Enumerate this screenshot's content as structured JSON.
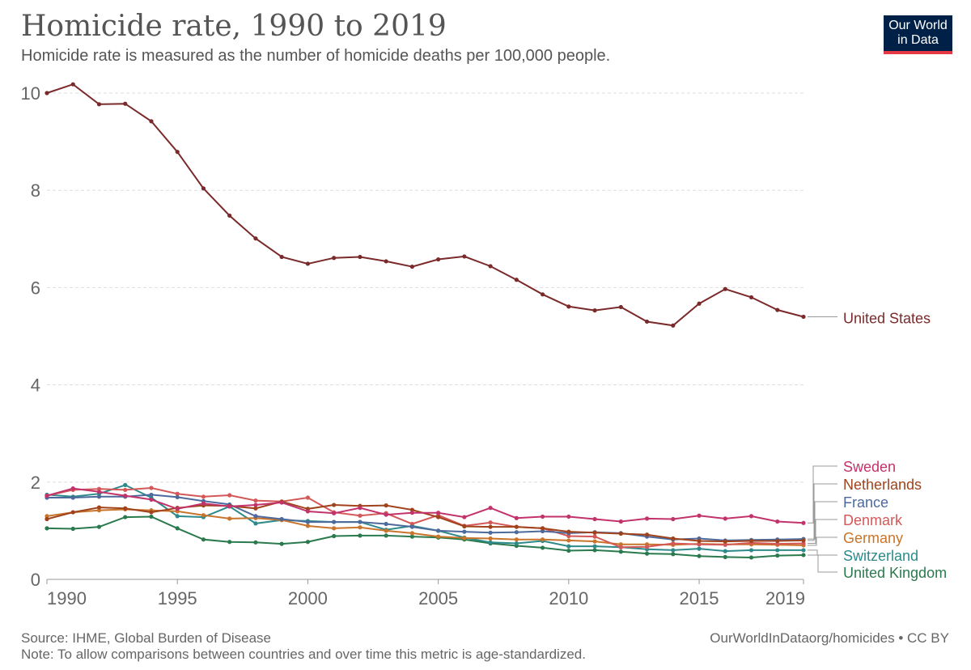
{
  "header": {
    "title": "Homicide rate, 1990 to 2019",
    "subtitle": "Homicide rate is measured as the number of homicide deaths per 100,000 people."
  },
  "logo": {
    "line1": "Our World",
    "line2": "in Data"
  },
  "footer": {
    "source": "Source: IHME, Global Burden of Disease",
    "note": "Note: To allow comparisons between countries and over time this metric is age-standardized.",
    "url": "OurWorldInDataorg/homicides • CC BY"
  },
  "chart_data": {
    "type": "line",
    "title": "Homicide rate, 1990 to 2019",
    "subtitle": "Homicide rate is measured as the number of homicide deaths per 100,000 people.",
    "xlabel": "",
    "ylabel": "",
    "xlim": [
      1990,
      2019
    ],
    "ylim": [
      0,
      10
    ],
    "x_ticks": [
      "1990",
      "1995",
      "2000",
      "2005",
      "2010",
      "2015",
      "2019"
    ],
    "y_ticks": [
      "0",
      "2",
      "4",
      "6",
      "8",
      "10"
    ],
    "grid": true,
    "legend": "right",
    "x": [
      1990,
      1991,
      1992,
      1993,
      1994,
      1995,
      1996,
      1997,
      1998,
      1999,
      2000,
      2001,
      2002,
      2003,
      2004,
      2005,
      2006,
      2007,
      2008,
      2009,
      2010,
      2011,
      2012,
      2013,
      2014,
      2015,
      2016,
      2017,
      2018,
      2019
    ],
    "series": [
      {
        "name": "United States",
        "color": "#7a2a2a",
        "values": [
          10.0,
          10.18,
          9.77,
          9.78,
          9.42,
          8.79,
          8.04,
          7.48,
          7.01,
          6.63,
          6.49,
          6.61,
          6.63,
          6.54,
          6.43,
          6.58,
          6.64,
          6.44,
          6.16,
          5.86,
          5.61,
          5.53,
          5.6,
          5.3,
          5.22,
          5.67,
          5.97,
          5.8,
          5.54,
          5.4
        ]
      },
      {
        "name": "Sweden",
        "color": "#c2336b",
        "values": [
          1.72,
          1.87,
          1.8,
          1.72,
          1.64,
          1.45,
          1.56,
          1.5,
          1.53,
          1.58,
          1.4,
          1.36,
          1.47,
          1.33,
          1.37,
          1.37,
          1.28,
          1.47,
          1.26,
          1.29,
          1.29,
          1.24,
          1.19,
          1.25,
          1.24,
          1.31,
          1.25,
          1.3,
          1.19,
          1.16
        ]
      },
      {
        "name": "Netherlands",
        "color": "#a0431c",
        "values": [
          1.24,
          1.38,
          1.48,
          1.46,
          1.38,
          1.47,
          1.52,
          1.51,
          1.46,
          1.6,
          1.45,
          1.53,
          1.51,
          1.52,
          1.43,
          1.28,
          1.09,
          1.08,
          1.08,
          1.05,
          0.98,
          0.96,
          0.94,
          0.92,
          0.84,
          0.79,
          0.78,
          0.79,
          0.79,
          0.8
        ]
      },
      {
        "name": "France",
        "color": "#4c6a9c",
        "values": [
          1.68,
          1.68,
          1.7,
          1.7,
          1.74,
          1.69,
          1.61,
          1.54,
          1.3,
          1.24,
          1.18,
          1.18,
          1.18,
          1.14,
          1.08,
          1.0,
          0.98,
          0.96,
          0.97,
          0.99,
          0.95,
          0.97,
          0.95,
          0.88,
          0.82,
          0.84,
          0.8,
          0.81,
          0.82,
          0.83
        ]
      },
      {
        "name": "Denmark",
        "color": "#d45858",
        "values": [
          1.72,
          1.84,
          1.86,
          1.84,
          1.88,
          1.76,
          1.7,
          1.73,
          1.62,
          1.6,
          1.68,
          1.38,
          1.31,
          1.36,
          1.14,
          1.32,
          1.1,
          1.17,
          1.08,
          1.05,
          0.89,
          0.88,
          0.66,
          0.67,
          0.74,
          0.72,
          0.71,
          0.75,
          0.73,
          0.74
        ]
      },
      {
        "name": "Germany",
        "color": "#c9742b",
        "values": [
          1.3,
          1.38,
          1.42,
          1.44,
          1.42,
          1.4,
          1.32,
          1.25,
          1.26,
          1.22,
          1.1,
          1.05,
          1.07,
          1.0,
          0.95,
          0.88,
          0.85,
          0.84,
          0.82,
          0.82,
          0.8,
          0.78,
          0.72,
          0.72,
          0.71,
          0.73,
          0.72,
          0.72,
          0.71,
          0.7
        ]
      },
      {
        "name": "Switzerland",
        "color": "#2e8a8a",
        "values": [
          1.74,
          1.7,
          1.76,
          1.94,
          1.68,
          1.3,
          1.28,
          1.5,
          1.15,
          1.22,
          1.2,
          1.18,
          1.18,
          1.02,
          1.1,
          1.0,
          0.86,
          0.76,
          0.74,
          0.79,
          0.68,
          0.68,
          0.66,
          0.62,
          0.6,
          0.63,
          0.58,
          0.6,
          0.6,
          0.6
        ]
      },
      {
        "name": "United Kingdom",
        "color": "#2a7a4e",
        "values": [
          1.05,
          1.04,
          1.08,
          1.28,
          1.29,
          1.05,
          0.82,
          0.77,
          0.76,
          0.73,
          0.77,
          0.89,
          0.9,
          0.9,
          0.88,
          0.86,
          0.82,
          0.74,
          0.69,
          0.65,
          0.59,
          0.6,
          0.57,
          0.53,
          0.52,
          0.48,
          0.46,
          0.45,
          0.49,
          0.5
        ]
      }
    ]
  }
}
